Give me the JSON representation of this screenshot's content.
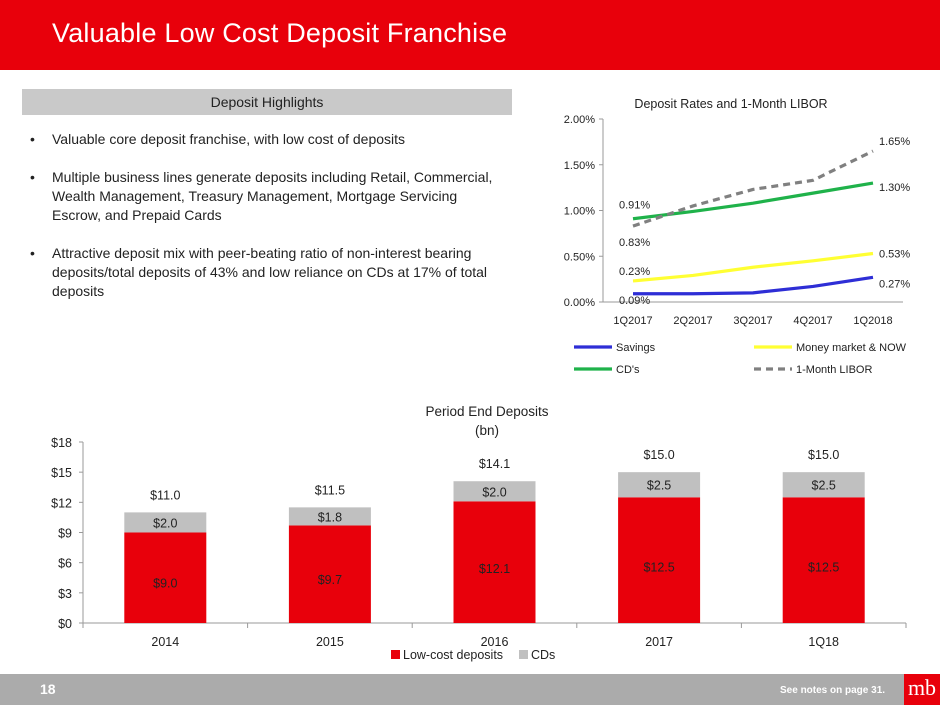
{
  "header": {
    "title": "Valuable Low Cost Deposit Franchise"
  },
  "highlights": {
    "title": "Deposit Highlights",
    "bullets": [
      "Valuable core deposit franchise, with low cost of deposits",
      "Multiple business lines generate deposits including Retail, Commercial, Wealth Management, Treasury Management, Mortgage Servicing Escrow, and Prepaid Cards",
      "Attractive deposit mix with peer-beating ratio of non-interest bearing deposits/total deposits of 43% and low reliance on CDs at 17% of total deposits"
    ]
  },
  "footer": {
    "page_number": "18",
    "notes": "See notes on page 31.",
    "logo_text": "mb"
  },
  "colors": {
    "brand_red": "#e8000b",
    "footer_gray": "#ababab",
    "cds_gray": "#c0c0c0"
  },
  "chart_data": [
    {
      "type": "line",
      "title": "Deposit Rates and 1-Month LIBOR",
      "categories": [
        "1Q2017",
        "2Q2017",
        "3Q2017",
        "4Q2017",
        "1Q2018"
      ],
      "ylim": [
        0,
        2.0
      ],
      "yticks": [
        "0.00%",
        "0.50%",
        "1.00%",
        "1.50%",
        "2.00%"
      ],
      "series": [
        {
          "name": "Savings",
          "color": "#2e2ed6",
          "dashed": false,
          "values": [
            0.09,
            0.09,
            0.1,
            0.17,
            0.27
          ],
          "start_label": "0.09%",
          "end_label": "0.27%"
        },
        {
          "name": "Money market & NOW",
          "color": "#ffff33",
          "dashed": false,
          "values": [
            0.23,
            0.29,
            0.38,
            0.45,
            0.53
          ],
          "start_label": "0.23%",
          "end_label": "0.53%"
        },
        {
          "name": "CD's",
          "color": "#1fb24a",
          "dashed": false,
          "values": [
            0.91,
            0.99,
            1.08,
            1.19,
            1.3
          ],
          "start_label": "0.91%",
          "end_label": "1.30%"
        },
        {
          "name": "1-Month LIBOR",
          "color": "#808080",
          "dashed": true,
          "values": [
            0.83,
            1.05,
            1.23,
            1.33,
            1.65
          ],
          "start_label": "0.83%",
          "end_label": "1.65%"
        }
      ]
    },
    {
      "type": "bar",
      "stacked": true,
      "title": "Period End Deposits",
      "subtitle": "(bn)",
      "categories": [
        "2014",
        "2015",
        "2016",
        "2017",
        "1Q18"
      ],
      "ylim": [
        0,
        18
      ],
      "yticks": [
        "$0",
        "$3",
        "$6",
        "$9",
        "$12",
        "$15",
        "$18"
      ],
      "series": [
        {
          "name": "Low-cost deposits",
          "color": "#e8000b",
          "values": [
            9.0,
            9.7,
            12.1,
            12.5,
            12.5
          ],
          "labels": [
            "$9.0",
            "$9.7",
            "$12.1",
            "$12.5",
            "$12.5"
          ]
        },
        {
          "name": "CDs",
          "color": "#c0c0c0",
          "values": [
            2.0,
            1.8,
            2.0,
            2.5,
            2.5
          ],
          "labels": [
            "$2.0",
            "$1.8",
            "$2.0",
            "$2.5",
            "$2.5"
          ]
        }
      ],
      "totals": [
        "$11.0",
        "$11.5",
        "$14.1",
        "$15.0",
        "$15.0"
      ]
    }
  ]
}
